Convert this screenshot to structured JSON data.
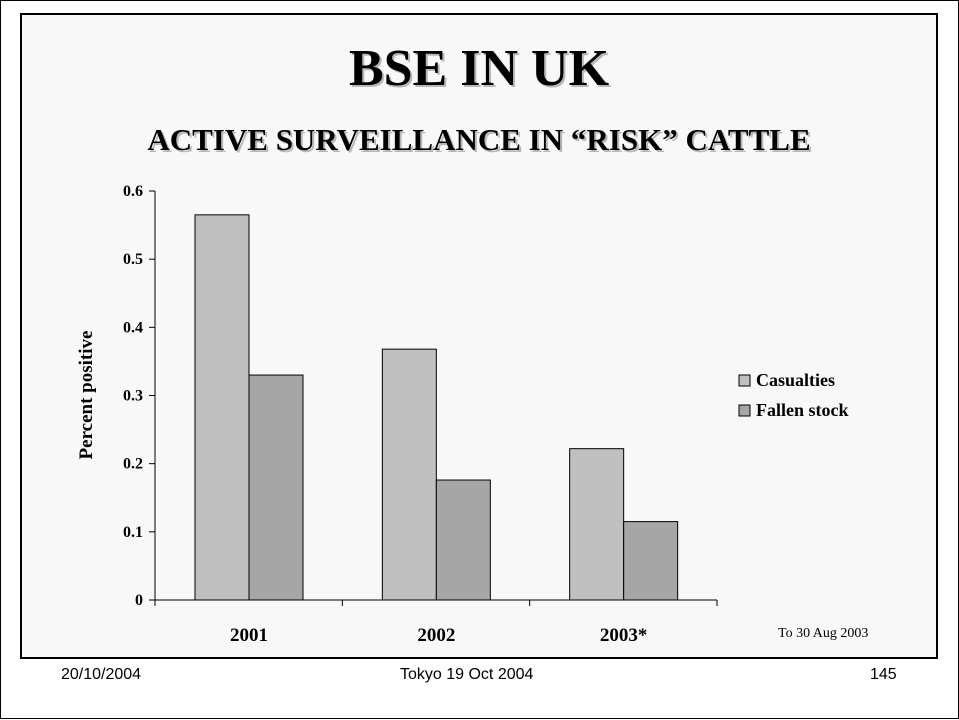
{
  "slide": {
    "title": "BSE IN UK",
    "subtitle": "ACTIVE SURVEILLANCE IN “RISK” CATTLE",
    "note": "To 30 Aug 2003",
    "footer": {
      "date": "20/10/2004",
      "event": "Tokyo 19 Oct 2004",
      "page": "145"
    }
  },
  "chart_data": {
    "type": "bar",
    "categories": [
      "2001",
      "2002",
      "2003*"
    ],
    "series": [
      {
        "name": "Casualties",
        "values": [
          0.565,
          0.368,
          0.222
        ],
        "color": "#c0c0c0"
      },
      {
        "name": "Fallen stock",
        "values": [
          0.33,
          0.176,
          0.115
        ],
        "color": "#a6a6a6"
      }
    ],
    "ylabel": "Percent positive",
    "ylim": [
      0,
      0.6
    ],
    "yticks": [
      "0",
      "0.1",
      "0.2",
      "0.3",
      "0.4",
      "0.5",
      "0.6"
    ],
    "grid": false,
    "legend": "right"
  }
}
